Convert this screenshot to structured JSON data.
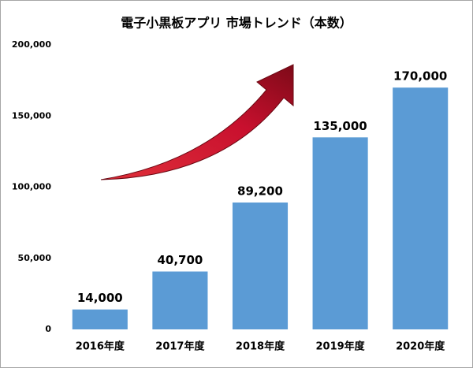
{
  "chart_data": {
    "type": "bar",
    "title": "電子小黒板アプリ 市場トレンド（本数）",
    "categories": [
      "2016年度",
      "2017年度",
      "2018年度",
      "2019年度",
      "2020年度"
    ],
    "values": [
      14000,
      40700,
      89200,
      135000,
      170000
    ],
    "value_labels": [
      "14,000",
      "40,700",
      "89,200",
      "135,000",
      "170,000"
    ],
    "color": "#5b9bd5",
    "ylim": [
      0,
      200000
    ],
    "yticks": [
      0,
      {
        "value": 50000,
        "label": "50,000"
      },
      {
        "value": 100000,
        "label": "100,000"
      },
      {
        "value": 150000,
        "label": "150,000"
      },
      {
        "value": 200000,
        "label": "200,000"
      }
    ],
    "grid": false
  }
}
